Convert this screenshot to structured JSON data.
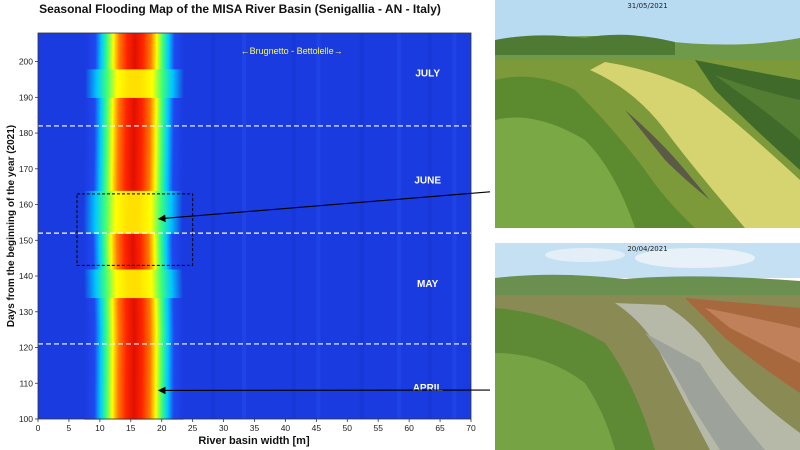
{
  "chart_data": {
    "type": "heatmap",
    "title": "Seasonal Flooding Map of the MISA River Basin (Senigallia - AN - Italy)",
    "xlabel": "River basin width [m]",
    "ylabel": "Days from the beginning of the year (2021)",
    "xlim": [
      0,
      70
    ],
    "ylim": [
      100,
      208
    ],
    "x_ticks": [
      0,
      5,
      10,
      15,
      20,
      25,
      30,
      35,
      40,
      45,
      50,
      55,
      60,
      65,
      70
    ],
    "y_ticks": [
      100,
      110,
      120,
      130,
      140,
      150,
      160,
      170,
      180,
      190,
      200
    ],
    "colormap": "jet",
    "grid": false,
    "river_channel": {
      "center_x": [
        {
          "day": 100,
          "x": 15.5
        },
        {
          "day": 125,
          "x": 15.6
        },
        {
          "day": 150,
          "x": 15.3
        },
        {
          "day": 175,
          "x": 15.5
        },
        {
          "day": 208,
          "x": 15.7
        }
      ],
      "peak_core_width_m": 5,
      "high_band_width_m": 11
    },
    "month_boundaries": [
      {
        "day": 121,
        "style": "dashed",
        "color": "#ffffff"
      },
      {
        "day": 152,
        "style": "dashed",
        "color": "#ffffff"
      },
      {
        "day": 182,
        "style": "dashed",
        "color": "#ffffff"
      }
    ],
    "month_labels": [
      {
        "label": "APRIL",
        "day": 109,
        "x": 63
      },
      {
        "label": "MAY",
        "day": 138,
        "x": 63
      },
      {
        "label": "JUNE",
        "day": 167,
        "x": 63
      },
      {
        "label": "JULY",
        "day": 197,
        "x": 63
      }
    ],
    "annotation": {
      "text": "←Brugnetto - Bettolelle→",
      "x": 41,
      "day": 203
    },
    "highlight_box": {
      "x_range": [
        6.3,
        25
      ],
      "day_range": [
        143,
        163
      ]
    },
    "arrows": [
      {
        "from_photo": "photo_june",
        "to": {
          "x": 19.5,
          "day": 156
        }
      },
      {
        "from_photo": "photo_april",
        "to": {
          "x": 19.5,
          "day": 108
        }
      }
    ]
  },
  "photos": {
    "photo_june": {
      "date": "31/05/2021",
      "icon": "river-landscape-photo"
    },
    "photo_april": {
      "date": "20/04/2021",
      "icon": "river-landscape-photo"
    }
  },
  "colors": {
    "river_peak": "#9b0000",
    "background_low": "#1a3be0",
    "arrow": "#000000"
  }
}
